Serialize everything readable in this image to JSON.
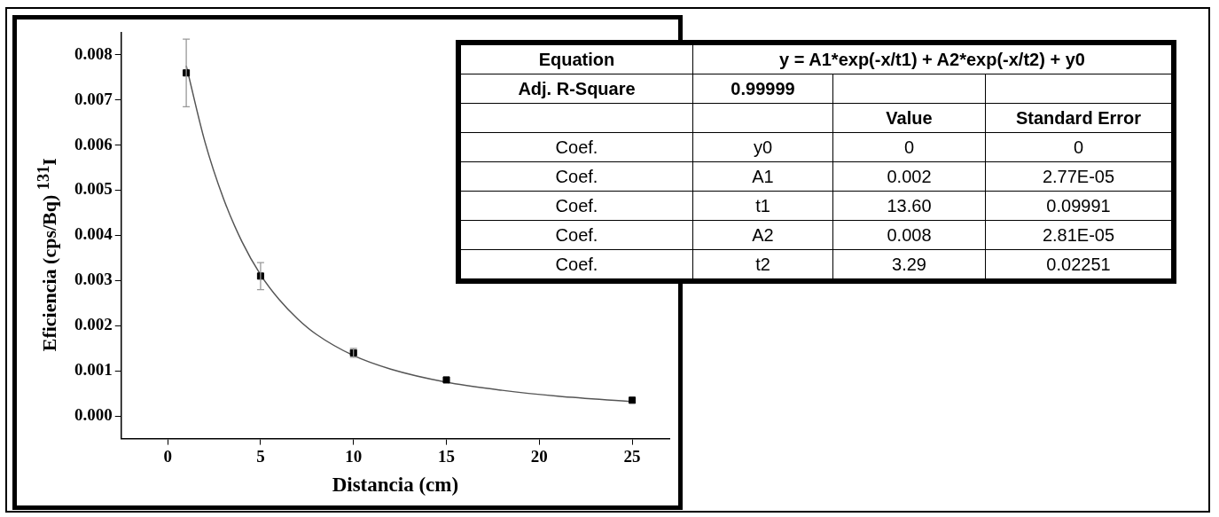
{
  "chart_data": [
    {
      "type": "scatter",
      "xlabel": "Distancia (cm)",
      "ylabel": "Eficiencia (cps/Bq) $^{131}$I",
      "xlim": [
        -2.5,
        27
      ],
      "xticks": [
        0,
        5,
        10,
        15,
        20,
        25
      ],
      "ylim": [
        -0.0005,
        0.0085
      ],
      "yticks": [
        {
          "value": 0,
          "label": "0.000"
        },
        0.001,
        0.002,
        0.003,
        0.004,
        0.005,
        0.006,
        0.007,
        0.008
      ],
      "series": [
        {
          "marker": "square",
          "color": "#000000",
          "x": [
            1,
            5,
            10,
            15,
            25
          ],
          "values": [
            0.0076,
            0.0031,
            0.0014,
            0.0008,
            0.00035
          ],
          "errors": [
            0.00075,
            0.0003,
            0.0001,
            null,
            null
          ]
        },
        {
          "type": "line",
          "marker": "none",
          "color": "#555555",
          "x": [
            1,
            2,
            3,
            4,
            5,
            6,
            7,
            8,
            10,
            12,
            15,
            18,
            21,
            25
          ],
          "values": [
            0.00776,
            0.00608,
            0.00482,
            0.00386,
            0.00313,
            0.00258,
            0.00215,
            0.00181,
            0.00134,
            0.00104,
            0.00075,
            0.00057,
            0.00044,
            0.00032
          ]
        }
      ]
    },
    {
      "type": "other",
      "annotations": [
        "Equation",
        "y = A1*exp(-x/t1) + A2*exp(-x/t2) + y0",
        "Adj. R-Square",
        "0.99999",
        "Value",
        "Standard Error",
        "Coef.",
        "y0",
        "0",
        "0",
        "Coef.",
        "A1",
        "0.002",
        "2.77E-05",
        "Coef.",
        "t1",
        "13.60",
        "0.09991",
        "Coef.",
        "A2",
        "0.008",
        "2.81E-05",
        "Coef.",
        "t2",
        "3.29",
        "0.02251"
      ]
    }
  ]
}
